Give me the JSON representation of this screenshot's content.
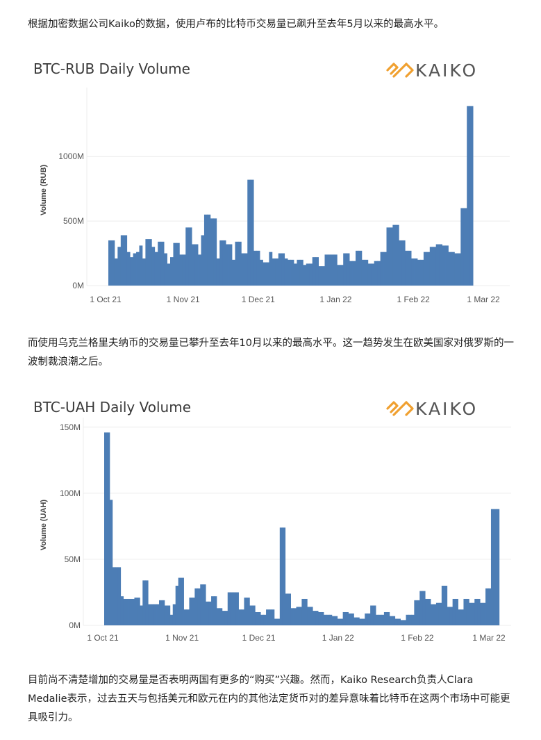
{
  "article": {
    "para1": "根据加密数据公司Kaiko的数据，使用卢布的比特币交易量已飙升至去年5月以来的最高水平。",
    "para2": "而使用乌克兰格里夫纳币的交易量已攀升至去年10月以来的最高水平。这一趋势发生在欧美国家对俄罗斯的一波制裁浪潮之后。",
    "para3": "目前尚不清楚增加的交易量是否表明两国有更多的“购买”兴趣。然而，Kaiko Research负责人Clara Medalie表示，过去五天与包括美元和欧元在内的其他法定货币对的差异意味着比特币在这两个市场中可能更具吸引力。"
  },
  "logo": {
    "text": "KAIKO"
  },
  "colors": {
    "bar": "#4c7db5",
    "logo_orange": "#f0a030"
  },
  "chart_data": [
    {
      "type": "bar",
      "title": "BTC-RUB Daily Volume",
      "ylabel": "Volume (RUB)",
      "xlabel": "",
      "x_tick_labels": [
        "1 Oct 21",
        "1 Nov 21",
        "1 Dec 21",
        "1 Jan 22",
        "1 Feb 22",
        "1 Mar 22"
      ],
      "x_tick_index": [
        0,
        31,
        61,
        92,
        123,
        151
      ],
      "y_ticks": [
        0,
        500,
        1000
      ],
      "y_tick_labels": [
        "0M",
        "500M",
        "1000M"
      ],
      "ylim": [
        0,
        1480
      ],
      "unit": "M RUB",
      "start_date": "2021-09-30",
      "grid": true,
      "values": [
        350,
        350,
        210,
        300,
        390,
        390,
        260,
        220,
        250,
        260,
        310,
        210,
        360,
        360,
        300,
        260,
        340,
        340,
        250,
        170,
        220,
        330,
        330,
        240,
        240,
        450,
        450,
        320,
        320,
        240,
        390,
        550,
        550,
        520,
        520,
        210,
        350,
        350,
        320,
        320,
        200,
        340,
        340,
        250,
        250,
        820,
        820,
        270,
        270,
        200,
        180,
        180,
        260,
        210,
        210,
        250,
        250,
        210,
        200,
        200,
        170,
        200,
        200,
        160,
        170,
        170,
        220,
        220,
        150,
        150,
        240,
        240,
        240,
        240,
        160,
        160,
        250,
        250,
        190,
        190,
        270,
        270,
        200,
        200,
        170,
        170,
        190,
        190,
        260,
        260,
        450,
        450,
        470,
        470,
        350,
        350,
        270,
        270,
        210,
        210,
        200,
        200,
        260,
        260,
        300,
        300,
        320,
        320,
        310,
        310,
        260,
        260,
        250,
        250,
        600,
        600,
        1390,
        1390
      ]
    },
    {
      "type": "bar",
      "title": "BTC-UAH Daily Volume",
      "ylabel": "Volume (UAH)",
      "xlabel": "",
      "x_tick_labels": [
        "1 Oct 21",
        "1 Nov 21",
        "1 Dec 21",
        "1 Jan 22",
        "1 Feb 22",
        "1 Mar 22"
      ],
      "x_tick_index": [
        0,
        31,
        61,
        92,
        123,
        151
      ],
      "y_ticks": [
        0,
        50,
        100,
        150
      ],
      "y_tick_labels": [
        "0M",
        "50M",
        "100M",
        "150M"
      ],
      "ylim": [
        0,
        152
      ],
      "unit": "M UAH",
      "start_date": "2021-09-30",
      "grid": true,
      "values": [
        146,
        146,
        95,
        44,
        44,
        44,
        22,
        20,
        20,
        20,
        20,
        21,
        21,
        15,
        34,
        34,
        16,
        16,
        16,
        16,
        19,
        19,
        15,
        15,
        8,
        16,
        30,
        36,
        36,
        12,
        12,
        21,
        21,
        28,
        28,
        31,
        31,
        18,
        18,
        22,
        22,
        13,
        13,
        11,
        11,
        25,
        25,
        25,
        25,
        12,
        12,
        21,
        21,
        15,
        15,
        10,
        10,
        8,
        8,
        12,
        12,
        12,
        5,
        5,
        74,
        74,
        24,
        24,
        13,
        13,
        14,
        14,
        20,
        20,
        14,
        14,
        11,
        11,
        10,
        10,
        8,
        8,
        8,
        7,
        7,
        5,
        5,
        10,
        10,
        9,
        9,
        6,
        6,
        5,
        5,
        9,
        9,
        15,
        15,
        8,
        8,
        8,
        10,
        10,
        7,
        7,
        5,
        5,
        4,
        4,
        8,
        8,
        8,
        19,
        19,
        26,
        26,
        20,
        20,
        16,
        16,
        17,
        17,
        30,
        30,
        14,
        14,
        20,
        20,
        12,
        12,
        20,
        20,
        17,
        17,
        20,
        20,
        17,
        17,
        28,
        28,
        88,
        88,
        88
      ]
    }
  ]
}
